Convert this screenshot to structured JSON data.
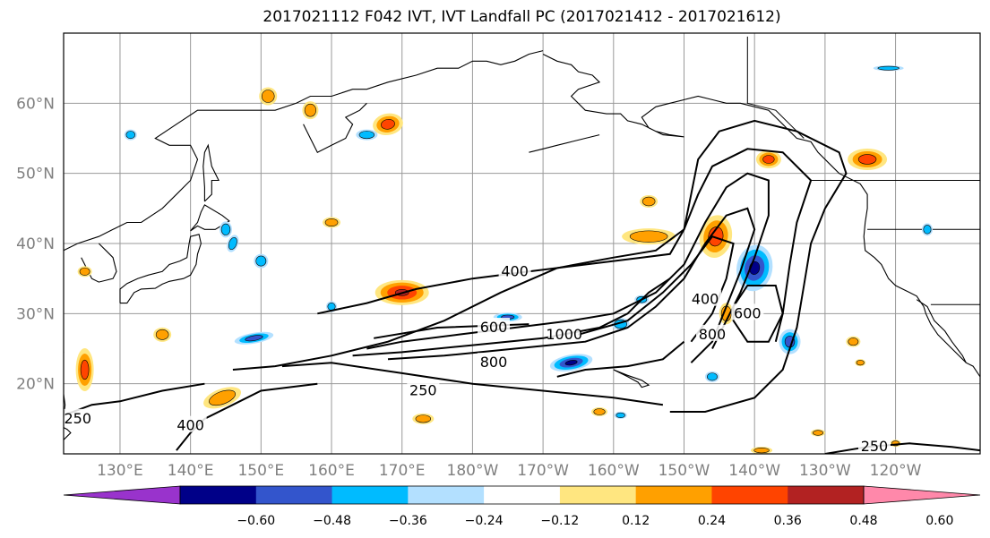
{
  "title": "2017021112 F042 IVT, IVT Landfall PC (2017021412 - 2017021612)",
  "map": {
    "lon_labels": [
      "130°E",
      "140°E",
      "150°E",
      "160°E",
      "170°E",
      "180°W",
      "170°W",
      "160°W",
      "150°W",
      "140°W",
      "130°W",
      "120°W"
    ],
    "lat_labels": [
      "60°N",
      "50°N",
      "40°N",
      "30°N",
      "20°N"
    ],
    "contour_labels": [
      {
        "value": "400",
        "lon": -174,
        "lat": 36
      },
      {
        "value": "600",
        "lon": -177,
        "lat": 28
      },
      {
        "value": "800",
        "lon": -177,
        "lat": 23
      },
      {
        "value": "1000",
        "lon": -167,
        "lat": 27
      },
      {
        "value": "250",
        "lon": 173,
        "lat": 19
      },
      {
        "value": "250",
        "lon": 124,
        "lat": 15
      },
      {
        "value": "400",
        "lon": 140,
        "lat": 14
      },
      {
        "value": "400",
        "lon": -147,
        "lat": 32
      },
      {
        "value": "600",
        "lon": -141,
        "lat": 30
      },
      {
        "value": "800",
        "lon": -146,
        "lat": 27
      },
      {
        "value": "250",
        "lon": -123,
        "lat": 11
      }
    ]
  },
  "colorbar": {
    "colors": [
      "#9933cc",
      "#000088",
      "#3355cc",
      "#00bbff",
      "#b3e0ff",
      "#ffffff",
      "#ffe680",
      "#ffa000",
      "#ff4400",
      "#b22222",
      "#ff88aa"
    ],
    "tick_labels": [
      "−0.60",
      "−0.48",
      "−0.36",
      "−0.24",
      "−0.12",
      "0.12",
      "0.24",
      "0.36",
      "0.48",
      "0.60"
    ]
  },
  "colors": {
    "contour": "#000000",
    "grid": "#999999",
    "coast": "#000000"
  }
}
